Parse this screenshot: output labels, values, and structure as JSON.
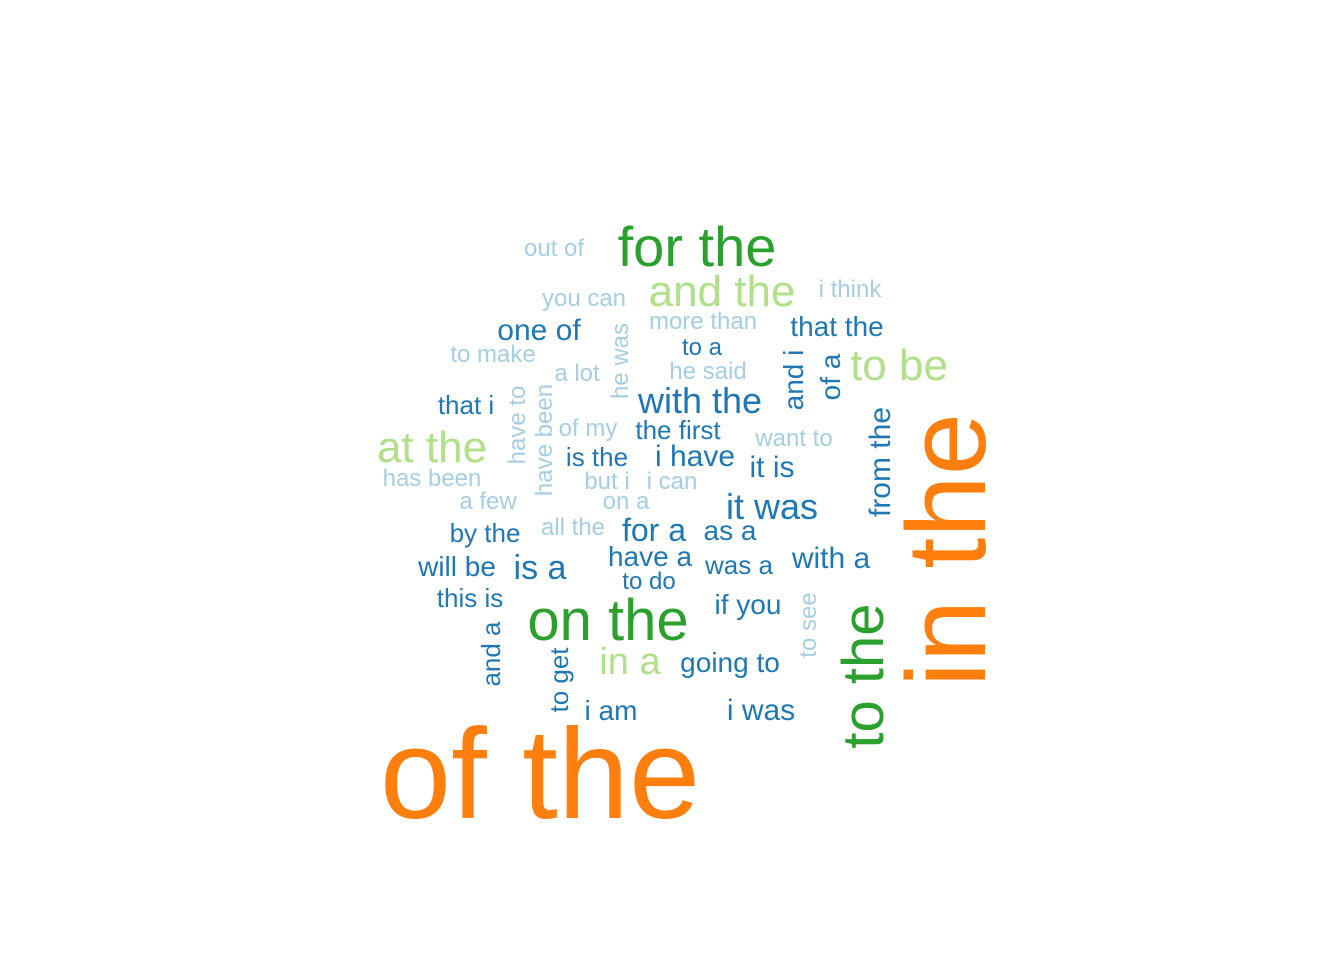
{
  "palette": {
    "top": "#ff7f0e",
    "high": "#2ca02c",
    "mid_high": "#b2df8a",
    "mid": "#1f78b4",
    "low": "#a6cee3"
  },
  "words": [
    {
      "text": "of the",
      "tier": "top"
    },
    {
      "text": "in the",
      "tier": "top"
    },
    {
      "text": "to the",
      "tier": "high"
    },
    {
      "text": "on the",
      "tier": "high"
    },
    {
      "text": "for the",
      "tier": "high"
    },
    {
      "text": "and the",
      "tier": "mid_high"
    },
    {
      "text": "to be",
      "tier": "mid_high"
    },
    {
      "text": "at the",
      "tier": "mid_high"
    },
    {
      "text": "in a",
      "tier": "mid_high"
    },
    {
      "text": "with the",
      "tier": "mid"
    },
    {
      "text": "it was",
      "tier": "mid"
    },
    {
      "text": "from the",
      "tier": "mid"
    },
    {
      "text": "one of",
      "tier": "mid"
    },
    {
      "text": "that the",
      "tier": "mid"
    },
    {
      "text": "is a",
      "tier": "mid"
    },
    {
      "text": "for a",
      "tier": "mid"
    },
    {
      "text": "with a",
      "tier": "mid"
    },
    {
      "text": "i have",
      "tier": "mid"
    },
    {
      "text": "it is",
      "tier": "mid"
    },
    {
      "text": "and i",
      "tier": "mid"
    },
    {
      "text": "of a",
      "tier": "mid"
    },
    {
      "text": "the first",
      "tier": "mid"
    },
    {
      "text": "is the",
      "tier": "mid"
    },
    {
      "text": "that i",
      "tier": "mid"
    },
    {
      "text": "by the",
      "tier": "mid"
    },
    {
      "text": "will be",
      "tier": "mid"
    },
    {
      "text": "as a",
      "tier": "mid"
    },
    {
      "text": "have a",
      "tier": "mid"
    },
    {
      "text": "was a",
      "tier": "mid"
    },
    {
      "text": "if you",
      "tier": "mid"
    },
    {
      "text": "this is",
      "tier": "mid"
    },
    {
      "text": "going to",
      "tier": "mid"
    },
    {
      "text": "i am",
      "tier": "mid"
    },
    {
      "text": "i was",
      "tier": "mid"
    },
    {
      "text": "and a",
      "tier": "mid"
    },
    {
      "text": "to get",
      "tier": "mid"
    },
    {
      "text": "to a",
      "tier": "mid"
    },
    {
      "text": "to do",
      "tier": "mid"
    },
    {
      "text": "out of",
      "tier": "low"
    },
    {
      "text": "you can",
      "tier": "low"
    },
    {
      "text": "i think",
      "tier": "low"
    },
    {
      "text": "more than",
      "tier": "low"
    },
    {
      "text": "to make",
      "tier": "low"
    },
    {
      "text": "he was",
      "tier": "low"
    },
    {
      "text": "a lot",
      "tier": "low"
    },
    {
      "text": "he said",
      "tier": "low"
    },
    {
      "text": "have to",
      "tier": "low"
    },
    {
      "text": "have been",
      "tier": "low"
    },
    {
      "text": "of my",
      "tier": "low"
    },
    {
      "text": "want to",
      "tier": "low"
    },
    {
      "text": "has been",
      "tier": "low"
    },
    {
      "text": "but i",
      "tier": "low"
    },
    {
      "text": "i can",
      "tier": "low"
    },
    {
      "text": "a few",
      "tier": "low"
    },
    {
      "text": "on a",
      "tier": "low"
    },
    {
      "text": "all the",
      "tier": "low"
    },
    {
      "text": "to see",
      "tier": "low"
    }
  ]
}
